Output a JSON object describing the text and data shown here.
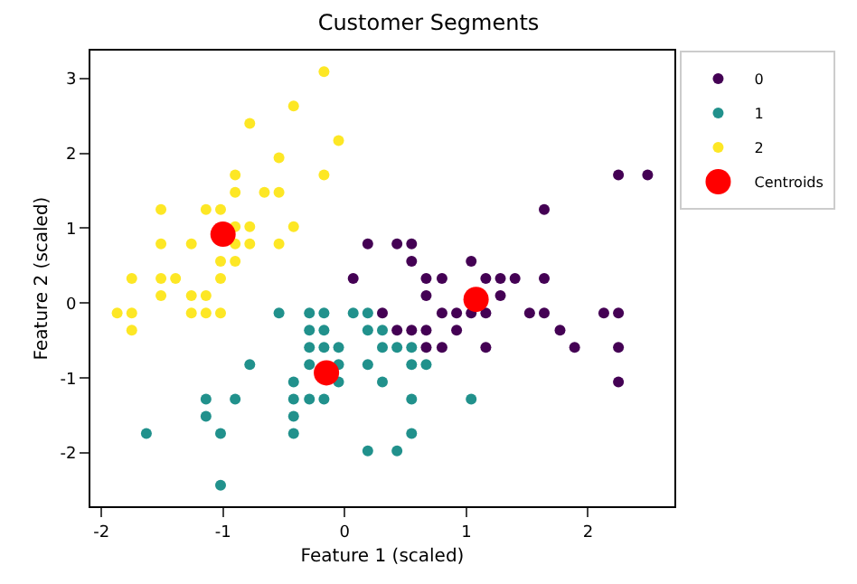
{
  "chart_data": {
    "type": "scatter",
    "title": "Customer Segments",
    "xlabel": "Feature 1 (scaled)",
    "ylabel": "Feature 2 (scaled)",
    "xlim": [
      -2.09,
      2.71
    ],
    "xticks": [
      -2,
      -1,
      0,
      1,
      2
    ],
    "ylim": [
      -2.71,
      3.37
    ],
    "yticks": [
      -2,
      -1,
      0,
      1,
      2,
      3
    ],
    "legend": "top right",
    "series": [
      {
        "name": "0",
        "color": "#440154",
        "x": [
          1.4,
          0.67,
          1.28,
          0.8,
          0.55,
          0.92,
          0.07,
          0.67,
          0.92,
          1.16,
          1.04,
          0.19,
          0.31,
          0.43,
          1.52,
          0.55,
          0.8,
          2.13,
          1.77,
          1.64,
          0.8,
          1.16,
          2.25,
          2.25,
          1.28,
          2.25,
          1.04,
          1.64,
          0.67,
          1.64,
          1.89,
          2.49,
          2.25,
          0.55,
          0.67,
          1.16,
          0.43
        ],
        "values": [
          0.33,
          0.33,
          0.1,
          -0.59,
          0.56,
          -0.36,
          0.33,
          -0.36,
          -0.13,
          -0.59,
          -0.13,
          0.79,
          -0.13,
          -0.36,
          -0.13,
          -0.36,
          -0.13,
          -0.13,
          -0.36,
          1.25,
          0.33,
          -0.13,
          1.71,
          -1.05,
          0.33,
          -0.59,
          0.56,
          0.33,
          -0.59,
          -0.13,
          -0.59,
          1.71,
          -0.13,
          0.79,
          0.1,
          0.33,
          0.79
        ]
      },
      {
        "name": "1",
        "color": "#21918c",
        "x": [
          -1.63,
          -0.42,
          -0.17,
          -1.14,
          -0.78,
          -1.02,
          0.07,
          0.19,
          0.31,
          -0.29,
          -0.29,
          -0.05,
          0.43,
          -0.29,
          0.31,
          0.55,
          0.19,
          -0.42,
          0.19,
          -0.54,
          0.55,
          -0.42,
          -0.42,
          -0.05,
          -1.02,
          -0.29,
          -0.17,
          -0.17,
          -0.9,
          -1.14,
          1.04,
          0.67,
          -0.17,
          -0.05,
          -0.29,
          0.55,
          0.43,
          0.55,
          0.31,
          0.19
        ],
        "values": [
          -1.74,
          -1.74,
          -0.59,
          -1.51,
          -0.82,
          -2.43,
          -0.13,
          -1.97,
          -0.36,
          -0.36,
          -0.13,
          -0.82,
          -1.97,
          -1.28,
          -0.59,
          -1.28,
          -0.36,
          -1.51,
          -0.82,
          -0.13,
          -1.74,
          -1.28,
          -1.05,
          -1.05,
          -1.74,
          -0.82,
          -0.13,
          -0.36,
          -1.28,
          -1.28,
          -1.28,
          -0.82,
          -1.28,
          -0.59,
          -0.59,
          -0.82,
          -0.59,
          -0.59,
          -1.05,
          -0.13
        ]
      },
      {
        "name": "2",
        "color": "#fde725",
        "x": [
          -0.9,
          -1.14,
          -1.39,
          -1.51,
          -1.02,
          -0.54,
          -1.51,
          -1.75,
          -1.14,
          -0.54,
          -1.26,
          -1.26,
          -1.87,
          -0.05,
          -0.17,
          -0.17,
          -0.9,
          -0.54,
          -0.9,
          -1.51,
          -0.9,
          -1.02,
          -0.78,
          -0.78,
          -1.26,
          -0.78,
          -0.42,
          -1.02,
          -0.42,
          -1.14,
          -1.75,
          -0.9,
          -1.75,
          -1.51,
          -0.66,
          -1.02
        ],
        "values": [
          1.02,
          -0.13,
          0.33,
          0.1,
          1.25,
          1.94,
          0.79,
          -0.36,
          0.1,
          1.48,
          0.79,
          -0.13,
          -0.13,
          2.17,
          3.09,
          1.71,
          1.71,
          0.79,
          1.48,
          1.25,
          0.56,
          -0.13,
          1.02,
          0.79,
          0.1,
          2.4,
          2.63,
          0.33,
          1.02,
          1.25,
          -0.13,
          0.79,
          0.33,
          0.33,
          1.48,
          0.56
        ]
      },
      {
        "name": "Centroids",
        "color": "#ff0000",
        "x": [
          1.08,
          -0.15,
          -1.0
        ],
        "values": [
          0.05,
          -0.93,
          0.92
        ]
      }
    ]
  }
}
